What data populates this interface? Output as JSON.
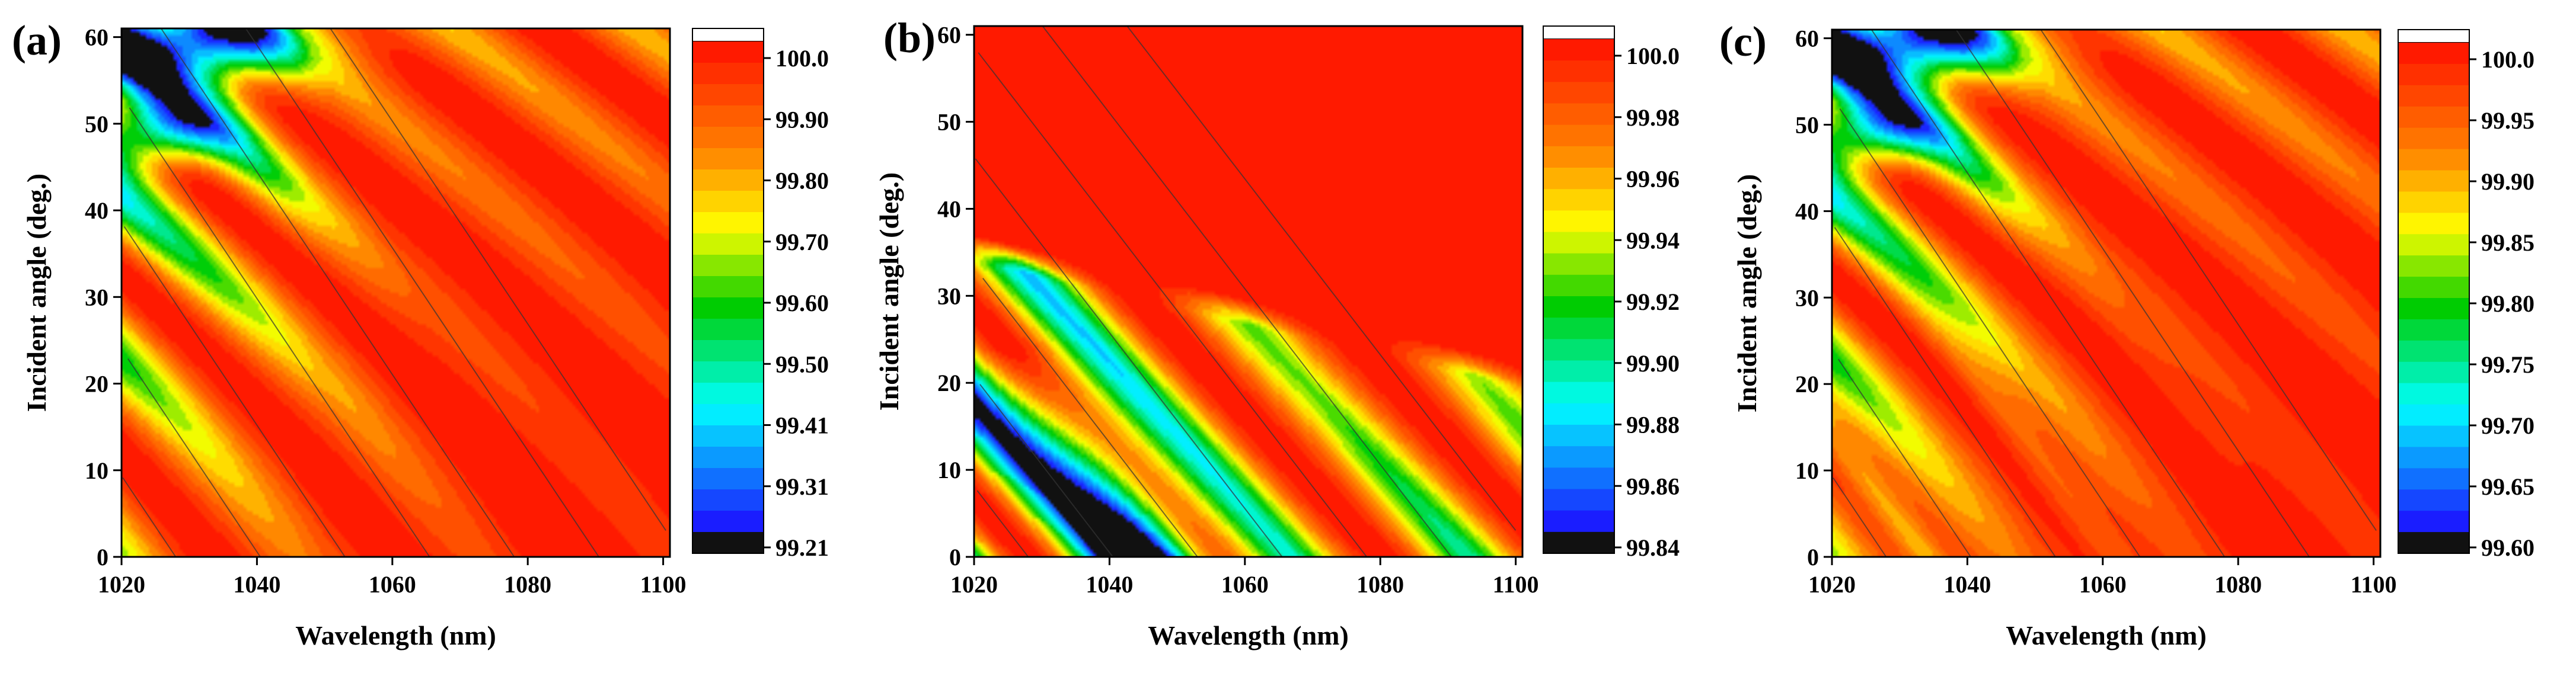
{
  "colors": {
    "band_black": "#111111",
    "band_blue": "#1a1aff",
    "band_cyan": "#00ffff",
    "band_green": "#00cc00",
    "band_yellow": "#ffff00",
    "band_orange": "#ff8000",
    "band_red": "#ff1a00",
    "contour_line": "#333333"
  },
  "chart_data": [
    {
      "type": "heatmap",
      "panel_label": "(a)",
      "xlabel": "Wavelength (nm)",
      "ylabel": "Incident angle (deg.)",
      "xlim": [
        1020,
        1101
      ],
      "ylim": [
        0,
        61
      ],
      "x_ticks": [
        "1020",
        "1040",
        "1060",
        "1080",
        "1100"
      ],
      "y_ticks": [
        "0",
        "10",
        "20",
        "30",
        "40",
        "50",
        "60"
      ],
      "colorbar_ticks": [
        "99.21",
        "99.31",
        "99.41",
        "99.50",
        "99.60",
        "99.70",
        "99.80",
        "99.90",
        "100.0"
      ],
      "value_range": [
        99.21,
        100.0
      ],
      "contour_levels": [
        99.5,
        99.7,
        99.8,
        99.9,
        99.95
      ],
      "pattern": "a"
    },
    {
      "type": "heatmap",
      "panel_label": "(b)",
      "xlabel": "Wavelength (nm)",
      "ylabel": "Incident angle (deg.)",
      "xlim": [
        1020,
        1101
      ],
      "ylim": [
        0,
        61
      ],
      "x_ticks": [
        "1020",
        "1040",
        "1060",
        "1080",
        "1100"
      ],
      "y_ticks": [
        "0",
        "10",
        "20",
        "30",
        "40",
        "50",
        "60"
      ],
      "colorbar_ticks": [
        "99.84",
        "99.86",
        "99.88",
        "99.90",
        "99.92",
        "99.94",
        "99.96",
        "99.98",
        "100.0"
      ],
      "value_range": [
        99.84,
        100.0
      ],
      "contour_levels": [
        99.86,
        99.9,
        99.94,
        99.97,
        99.99
      ],
      "pattern": "b"
    },
    {
      "type": "heatmap",
      "panel_label": "(c)",
      "xlabel": "Wavelength (nm)",
      "ylabel": "Incident angle (deg.)",
      "xlim": [
        1020,
        1101
      ],
      "ylim": [
        0,
        61
      ],
      "x_ticks": [
        "1020",
        "1040",
        "1060",
        "1080",
        "1100"
      ],
      "y_ticks": [
        "0",
        "10",
        "20",
        "30",
        "40",
        "50",
        "60"
      ],
      "colorbar_ticks": [
        "99.60",
        "99.65",
        "99.70",
        "99.75",
        "99.80",
        "99.85",
        "99.90",
        "99.95",
        "100.0"
      ],
      "value_range": [
        99.6,
        100.0
      ],
      "contour_levels": [
        99.75,
        99.85,
        99.9,
        99.95,
        99.98
      ],
      "pattern": "a"
    }
  ]
}
